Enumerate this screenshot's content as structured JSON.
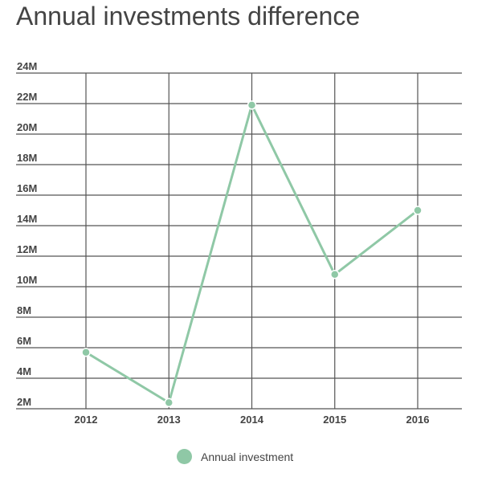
{
  "chart_data": {
    "type": "line",
    "title": "Annual investments difference",
    "xlabel": "",
    "ylabel": "",
    "categories": [
      "2012",
      "2013",
      "2014",
      "2015",
      "2016"
    ],
    "series": [
      {
        "name": "Annual investment",
        "values": [
          5700000,
          2400000,
          21900000,
          10800000,
          15000000
        ],
        "color": "#8fc8a6"
      }
    ],
    "ylim": [
      2000000,
      24000000
    ],
    "yticks": [
      {
        "value": 2000000,
        "label": "2M"
      },
      {
        "value": 4000000,
        "label": "4M"
      },
      {
        "value": 6000000,
        "label": "6M"
      },
      {
        "value": 8000000,
        "label": "8M"
      },
      {
        "value": 10000000,
        "label": "10M"
      },
      {
        "value": 12000000,
        "label": "12M"
      },
      {
        "value": 14000000,
        "label": "14M"
      },
      {
        "value": 16000000,
        "label": "16M"
      },
      {
        "value": 18000000,
        "label": "18M"
      },
      {
        "value": 20000000,
        "label": "20M"
      },
      {
        "value": 22000000,
        "label": "22M"
      },
      {
        "value": 24000000,
        "label": "24M"
      }
    ],
    "grid": true,
    "legend": "bottom-center",
    "grid_color": "#555555"
  }
}
